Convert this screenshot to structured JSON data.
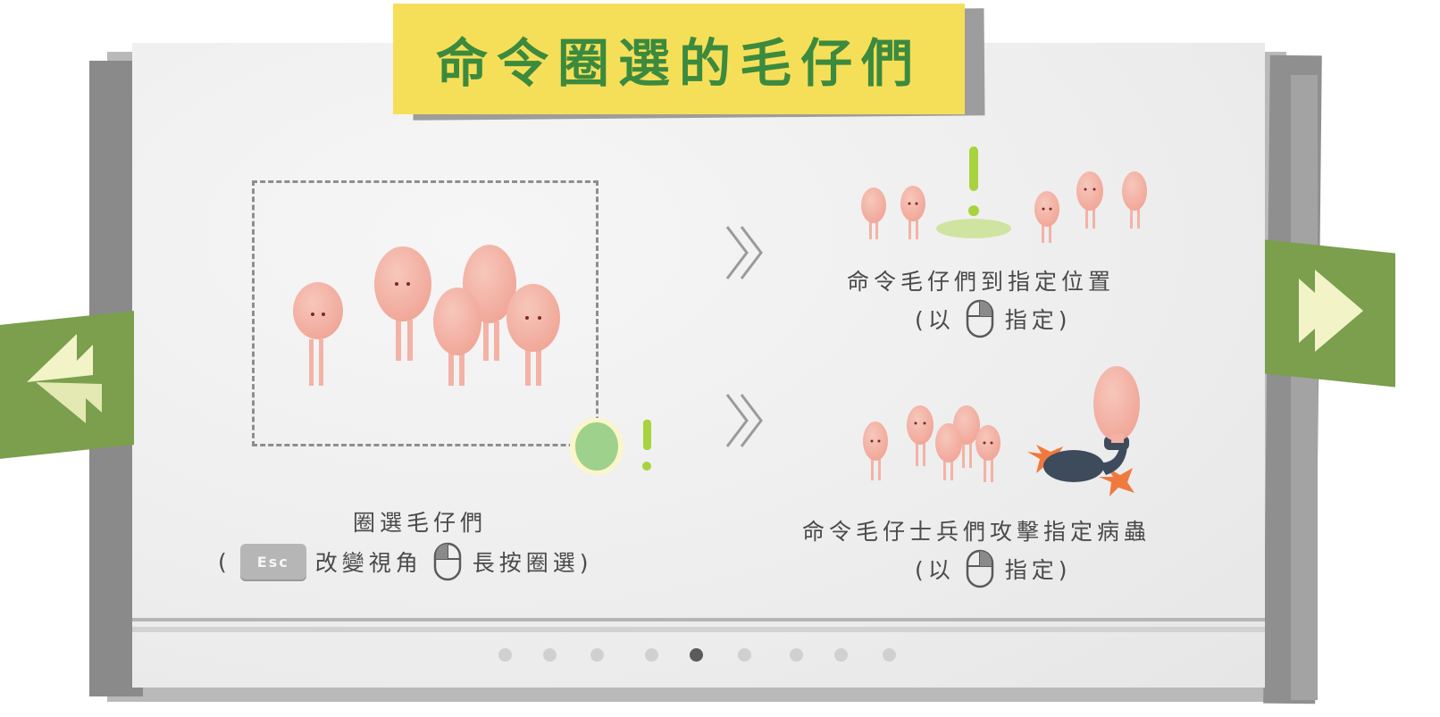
{
  "title": "命令圈選的毛仔們",
  "nav": {
    "prev_icon": "double-arrow-left-icon",
    "next_icon": "double-arrow-right-icon"
  },
  "steps": [
    {
      "label": "圈選毛仔們",
      "hint_open": "(",
      "key_label": "Esc",
      "hint_mid": "改變視角",
      "mouse_icon": "mouse-left-click-icon",
      "hint_end": "長按圈選)"
    },
    {
      "label": "命令毛仔們到指定位置",
      "hint_open": "(以",
      "mouse_icon": "mouse-right-click-icon",
      "hint_end": "指定)"
    },
    {
      "label": "命令毛仔士兵們攻擊指定病蟲",
      "hint_open": "(以",
      "mouse_icon": "mouse-right-click-icon",
      "hint_end": "指定)"
    }
  ],
  "pagination": {
    "total": 9,
    "current_page": 5
  },
  "colors": {
    "title_tape": "#f6df58",
    "title_text": "#3b8a3e",
    "nav_tab": "#7b9f4d",
    "creature": "#f4b2a6",
    "marker": "#9ccc3c"
  }
}
